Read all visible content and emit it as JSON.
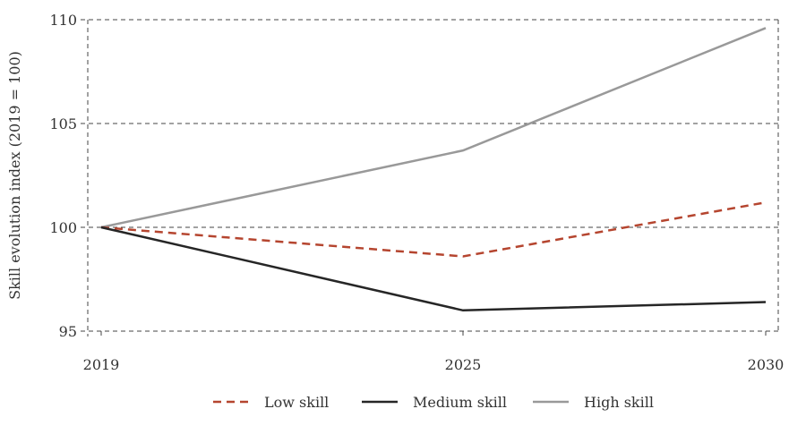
{
  "chart_data": {
    "type": "line",
    "title": "",
    "xlabel": "",
    "ylabel": "Skill evolution index (2019 = 100)",
    "x": [
      2019,
      2025,
      2030
    ],
    "x_tick_labels": [
      "2019",
      "2025",
      "2030"
    ],
    "y_ticks": [
      95,
      100,
      105,
      110
    ],
    "y_tick_labels": [
      "95",
      "100",
      "105",
      "110"
    ],
    "ylim": [
      95,
      110
    ],
    "grid": true,
    "legend_position": "bottom",
    "series": [
      {
        "name": "Low skill",
        "values": [
          100,
          98.6,
          101.2
        ],
        "color": "#b5452f",
        "dash": true
      },
      {
        "name": "Medium skill",
        "values": [
          100,
          96.0,
          96.4
        ],
        "color": "#262626",
        "dash": false
      },
      {
        "name": "High skill",
        "values": [
          100,
          103.7,
          109.6
        ],
        "color": "#999999",
        "dash": false
      }
    ]
  }
}
